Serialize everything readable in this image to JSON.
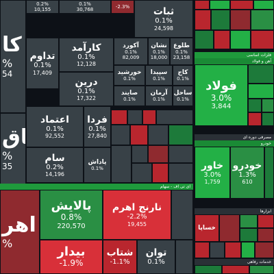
{
  "sectors": {
    "investment_header": "ای تی اف - سهام",
    "metals_header": "فلزات اساسی",
    "metals_sub": "آهن و فولاد",
    "chemicals_header": "مصرفی دوره ای",
    "auto_header": "خودرو",
    "pharma_header": "خدمات رفاهی",
    "ind_header": "ابزارها"
  },
  "top_partial": {
    "a": {
      "pct": "0.2%",
      "vol": "10,155"
    },
    "b": {
      "pct": "0.1%",
      "vol": "30,768"
    },
    "c": {
      "pct": "-2.3%",
      "vol": ""
    }
  },
  "tiles": {
    "sabat": {
      "name": "ثبات",
      "pct": "0.1%",
      "vol": "24,598"
    },
    "karamad": {
      "name": "کارآمد",
      "pct": "0.1%",
      "vol": "12,128"
    },
    "akord": {
      "name": "آکورد",
      "pct": "0.1%",
      "vol": "82,009"
    },
    "neshan": {
      "name": "نشان",
      "pct": "0.1%",
      "vol": "18,000"
    },
    "tolou": {
      "name": "طلوع",
      "pct": "0.1%",
      "vol": "23,158"
    },
    "tadavom": {
      "name": "تداوم",
      "pct": "0.1%",
      "vol": "17,409"
    },
    "dorin": {
      "name": "درین",
      "pct": "0.1%",
      "vol": "17,322"
    },
    "khorshid": {
      "name": "خورشید",
      "pct": "0.1%",
      "vol": ""
    },
    "sepida": {
      "name": "سپیدا",
      "pct": "0.1%",
      "vol": ""
    },
    "kaj": {
      "name": "کاج",
      "pct": "0.1%",
      "vol": ""
    },
    "sayan": {
      "name": "صایند",
      "pct": "0.1%",
      "vol": ""
    },
    "arman": {
      "name": "آرمان",
      "pct": "0.1%",
      "vol": ""
    },
    "sahel": {
      "name": "ساحل",
      "pct": "0.1%",
      "vol": ""
    },
    "etemad": {
      "name": "اعتماد",
      "pct": "0.1%",
      "vol": "92,552"
    },
    "farda": {
      "name": "فردا",
      "pct": "0.1%",
      "vol": "27,840"
    },
    "sam": {
      "name": "سام",
      "pct": "0.2%",
      "vol": "14,196"
    },
    "padash": {
      "name": "پاداش",
      "pct": "0.1%",
      "vol": ""
    },
    "left1": {
      "name": "کا",
      "pct": "%",
      "vol": "54"
    },
    "left2": {
      "name": "یاق",
      "pct": "%",
      "vol": "35"
    },
    "pallayesh": {
      "name": "پالایش",
      "pct": "0.8%",
      "vol": "220,570"
    },
    "narenj": {
      "name": "نارنج اهرم",
      "pct": "-2.2%",
      "vol": "19,455"
    },
    "bidar": {
      "name": "بیدار",
      "pct": "-1.9%",
      "vol": ""
    },
    "shetab": {
      "name": "شتاب",
      "pct": "-1.1%",
      "vol": ""
    },
    "tavan": {
      "name": "توان",
      "pct": "0.1%",
      "vol": ""
    },
    "ahrom": {
      "name": "اهر",
      "pct": "%",
      "vol": ""
    },
    "foolad": {
      "name": "فولاد",
      "pct": "3.0%",
      "vol": "3,844"
    },
    "khavar": {
      "name": "خاور",
      "pct": "3.0%",
      "vol": "1,759"
    },
    "khodro": {
      "name": "خودرو",
      "pct": "1.3%",
      "vol": "610"
    },
    "khesapa": {
      "name": "خساپا",
      "pct": "",
      "vol": ""
    }
  }
}
